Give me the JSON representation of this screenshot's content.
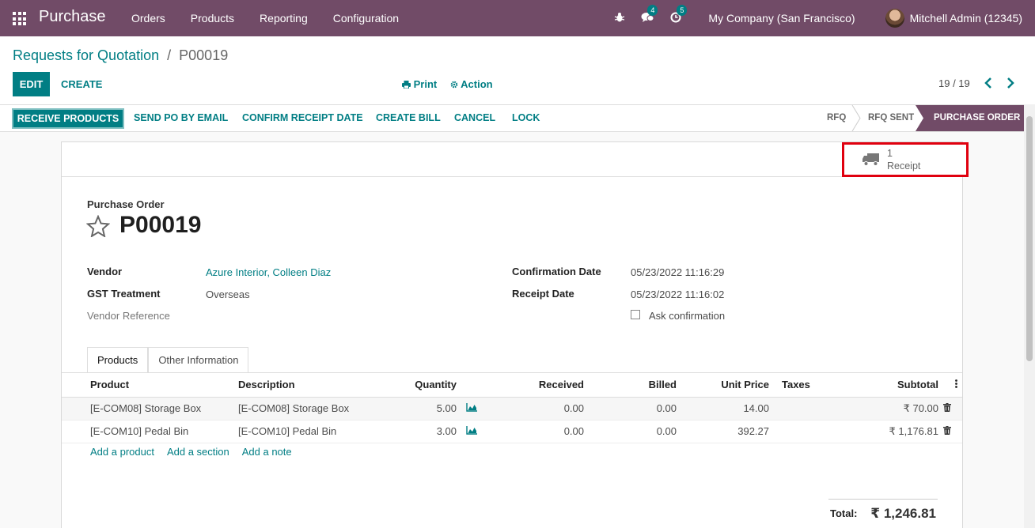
{
  "navbar": {
    "app_name": "Purchase",
    "menu": [
      "Orders",
      "Products",
      "Reporting",
      "Configuration"
    ],
    "chat_badge": "4",
    "activity_badge": "5",
    "company": "My Company (San Francisco)",
    "user": "Mitchell Admin (12345)",
    "color": "#714b67"
  },
  "breadcrumb": {
    "parent": "Requests for Quotation",
    "separator": "/",
    "current": "P00019"
  },
  "control": {
    "edit": "EDIT",
    "create": "CREATE",
    "print": "Print",
    "action": "Action",
    "pager": "19 / 19"
  },
  "statusbar": {
    "buttons": [
      "RECEIVE PRODUCTS",
      "SEND PO BY EMAIL",
      "CONFIRM RECEIPT DATE",
      "CREATE BILL",
      "CANCEL",
      "LOCK"
    ],
    "stages": [
      "RFQ",
      "RFQ SENT",
      "PURCHASE ORDER"
    ],
    "active_stage": "PURCHASE ORDER"
  },
  "smart_button": {
    "count": "1",
    "label": "Receipt",
    "icon": "truck-icon",
    "highlight_color": "#e0000f"
  },
  "form": {
    "title_label": "Purchase Order",
    "title": "P00019",
    "vendor_label": "Vendor",
    "vendor": "Azure Interior, Colleen Diaz",
    "gst_label": "GST Treatment",
    "gst": "Overseas",
    "vendor_ref_label": "Vendor Reference",
    "confirmation_label": "Confirmation Date",
    "confirmation": "05/23/2022 11:16:29",
    "receipt_label": "Receipt Date",
    "receipt": "05/23/2022 11:16:02",
    "ask_label": "Ask confirmation"
  },
  "tabs": [
    "Products",
    "Other Information"
  ],
  "lines": {
    "headers": [
      "Product",
      "Description",
      "Quantity",
      "Received",
      "Billed",
      "Unit Price",
      "Taxes",
      "Subtotal"
    ],
    "rows": [
      {
        "product": "[E-COM08] Storage Box",
        "description": "[E-COM08] Storage Box",
        "quantity": "5.00",
        "received": "0.00",
        "billed": "0.00",
        "unit_price": "14.00",
        "taxes": "",
        "subtotal": "₹ 70.00"
      },
      {
        "product": "[E-COM10] Pedal Bin",
        "description": "[E-COM10] Pedal Bin",
        "quantity": "3.00",
        "received": "0.00",
        "billed": "0.00",
        "unit_price": "392.27",
        "taxes": "",
        "subtotal": "₹ 1,176.81"
      }
    ],
    "add_product": "Add a product",
    "add_section": "Add a section",
    "add_note": "Add a note"
  },
  "total": {
    "label": "Total:",
    "value": "₹ 1,246.81"
  }
}
